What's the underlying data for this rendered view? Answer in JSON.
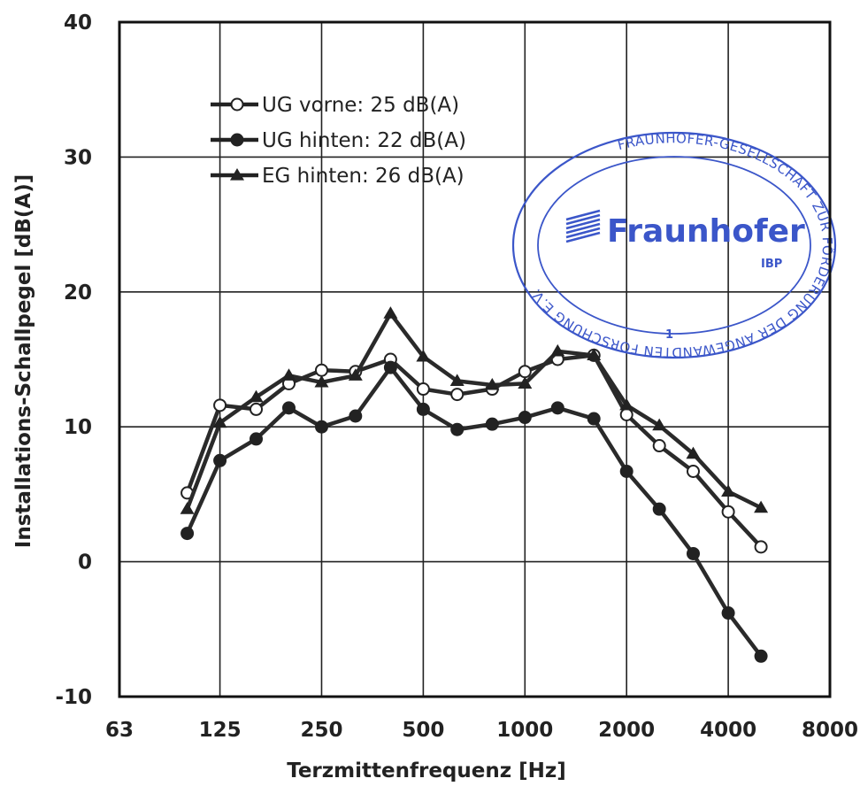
{
  "chart_data": {
    "type": "line",
    "x_scale": "log2",
    "xlabel": "Terzmittenfrequenz [Hz]",
    "ylabel": "Installations-Schallpegel [dB(A)]",
    "xlim": [
      63,
      8000
    ],
    "ylim": [
      -10,
      40
    ],
    "x_ticks": [
      63,
      125,
      250,
      500,
      1000,
      2000,
      4000,
      8000
    ],
    "x_tick_labels": [
      "63",
      "125",
      "250",
      "500",
      "1000",
      "2000",
      "4000",
      "8000"
    ],
    "y_ticks": [
      -10,
      0,
      10,
      20,
      30,
      40
    ],
    "y_tick_labels": [
      "-10",
      "0",
      "10",
      "20",
      "30",
      "40"
    ],
    "grid": true,
    "legend_position": "top-left",
    "x": [
      100,
      125,
      160,
      200,
      250,
      315,
      400,
      500,
      630,
      800,
      1000,
      1250,
      1600,
      2000,
      2500,
      3150,
      4000,
      5000
    ],
    "series": [
      {
        "name": "UG vorne: 25 dB(A)",
        "marker": "open-circle",
        "values": [
          5.1,
          11.6,
          11.3,
          13.2,
          14.2,
          14.1,
          15.0,
          12.8,
          12.4,
          12.8,
          14.1,
          15.0,
          15.3,
          10.9,
          8.6,
          6.7,
          3.7,
          1.1
        ]
      },
      {
        "name": "UG hinten: 22 dB(A)",
        "marker": "filled-circle",
        "values": [
          2.1,
          7.5,
          9.1,
          11.4,
          10.0,
          10.8,
          14.4,
          11.3,
          9.8,
          10.2,
          10.7,
          11.4,
          10.6,
          6.7,
          3.9,
          0.6,
          -3.8,
          -7.0
        ]
      },
      {
        "name": "EG hinten: 26 dB(A)",
        "marker": "filled-triangle",
        "values": [
          3.9,
          10.3,
          12.2,
          13.8,
          13.3,
          13.8,
          18.4,
          15.2,
          13.4,
          13.1,
          13.2,
          15.6,
          15.3,
          11.6,
          10.1,
          8.0,
          5.2,
          4.0
        ]
      }
    ]
  },
  "stamp": {
    "outer_text": "FRAUNHOFER-GESELLSCHAFT ZUR FÖRDERUNG DER ANGEWANDTEN FORSCHUNG E.V.",
    "brand": "Fraunhofer",
    "institute": "IBP",
    "number": "1"
  }
}
